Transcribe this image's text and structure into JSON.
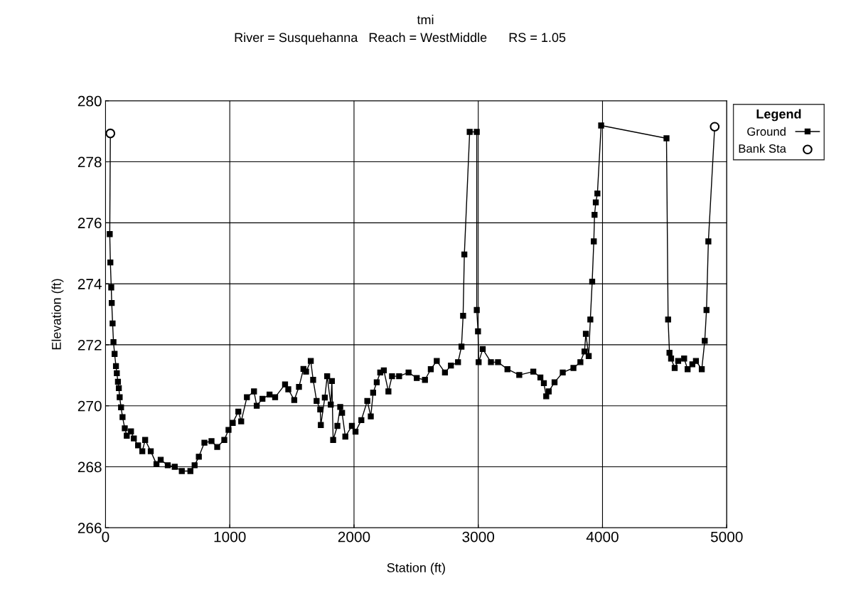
{
  "chart_data": {
    "type": "line",
    "title": "tmi",
    "subtitle": "River = Susquehanna   Reach = WestMiddle      RS = 1.05",
    "xlabel": "Station (ft)",
    "ylabel": "Elevation (ft)",
    "legend_title": "Legend",
    "legend": "top right",
    "grid": true,
    "xlim": [
      0,
      5000
    ],
    "xticks": [
      0,
      1000,
      2000,
      3000,
      4000,
      5000
    ],
    "ylim": [
      266,
      280
    ],
    "yticks": [
      266,
      268,
      270,
      272,
      274,
      276,
      278,
      280
    ],
    "series": [
      {
        "name": "Ground",
        "color": "#000000",
        "marker": "square",
        "line_style": "solid",
        "x": [
          39,
          34,
          39,
          46,
          50,
          57,
          64,
          73,
          84,
          91,
          100,
          107,
          114,
          125,
          137,
          155,
          171,
          205,
          228,
          262,
          296,
          319,
          364,
          410,
          444,
          501,
          557,
          614,
          683,
          717,
          751,
          796,
          853,
          899,
          956,
          990,
          1024,
          1069,
          1092,
          1138,
          1195,
          1217,
          1263,
          1320,
          1365,
          1445,
          1471,
          1519,
          1557,
          1593,
          1614,
          1652,
          1671,
          1699,
          1728,
          1733,
          1765,
          1784,
          1813,
          1822,
          1832,
          1866,
          1889,
          1904,
          1930,
          1983,
          2012,
          2059,
          2107,
          2135,
          2154,
          2183,
          2211,
          2240,
          2277,
          2306,
          2363,
          2439,
          2505,
          2571,
          2618,
          2666,
          2732,
          2780,
          2837,
          2865,
          2878,
          2888,
          2931,
          2988,
          2988,
          2998,
          3003,
          3036,
          3102,
          3159,
          3235,
          3330,
          3443,
          3500,
          3528,
          3547,
          3567,
          3614,
          3680,
          3766,
          3822,
          3855,
          3866,
          3889,
          3902,
          3917,
          3930,
          3936,
          3946,
          3959,
          3989,
          4515,
          4528,
          4539,
          4552,
          4581,
          4609,
          4657,
          4685,
          4723,
          4752,
          4799,
          4823,
          4837,
          4852,
          4903
        ],
        "values": [
          278.93,
          275.63,
          274.7,
          273.88,
          273.37,
          272.7,
          272.09,
          271.7,
          271.3,
          271.07,
          270.79,
          270.58,
          270.28,
          269.95,
          269.63,
          269.26,
          269.02,
          269.16,
          268.93,
          268.7,
          268.51,
          268.88,
          268.51,
          268.09,
          268.23,
          268.05,
          268.0,
          267.86,
          267.86,
          268.05,
          268.33,
          268.79,
          268.84,
          268.65,
          268.88,
          269.21,
          269.44,
          269.81,
          269.49,
          270.28,
          270.47,
          270.0,
          270.23,
          270.37,
          270.28,
          270.7,
          270.54,
          270.19,
          270.62,
          271.21,
          271.12,
          271.47,
          270.85,
          270.16,
          269.88,
          269.37,
          270.27,
          270.97,
          270.04,
          270.81,
          268.88,
          269.34,
          269.96,
          269.77,
          268.99,
          269.34,
          269.15,
          269.53,
          270.16,
          269.65,
          270.43,
          270.77,
          271.09,
          271.16,
          270.47,
          270.97,
          270.97,
          271.09,
          270.91,
          270.85,
          271.2,
          271.47,
          271.09,
          271.32,
          271.43,
          271.94,
          272.95,
          274.96,
          278.98,
          278.98,
          273.14,
          272.44,
          271.43,
          271.86,
          271.43,
          271.43,
          271.2,
          271.01,
          271.12,
          270.93,
          270.74,
          270.31,
          270.47,
          270.77,
          271.09,
          271.24,
          271.43,
          271.78,
          272.36,
          271.63,
          272.83,
          274.07,
          275.39,
          276.26,
          276.67,
          276.96,
          279.19,
          278.77,
          272.83,
          271.74,
          271.55,
          271.24,
          271.47,
          271.55,
          271.2,
          271.36,
          271.47,
          271.2,
          272.13,
          273.14,
          275.39,
          279.15
        ]
      },
      {
        "name": "Bank Sta",
        "type": "scatter",
        "color": "#000000",
        "marker": "circle",
        "x": [
          39,
          4903
        ],
        "values": [
          278.93,
          279.15
        ]
      }
    ]
  }
}
